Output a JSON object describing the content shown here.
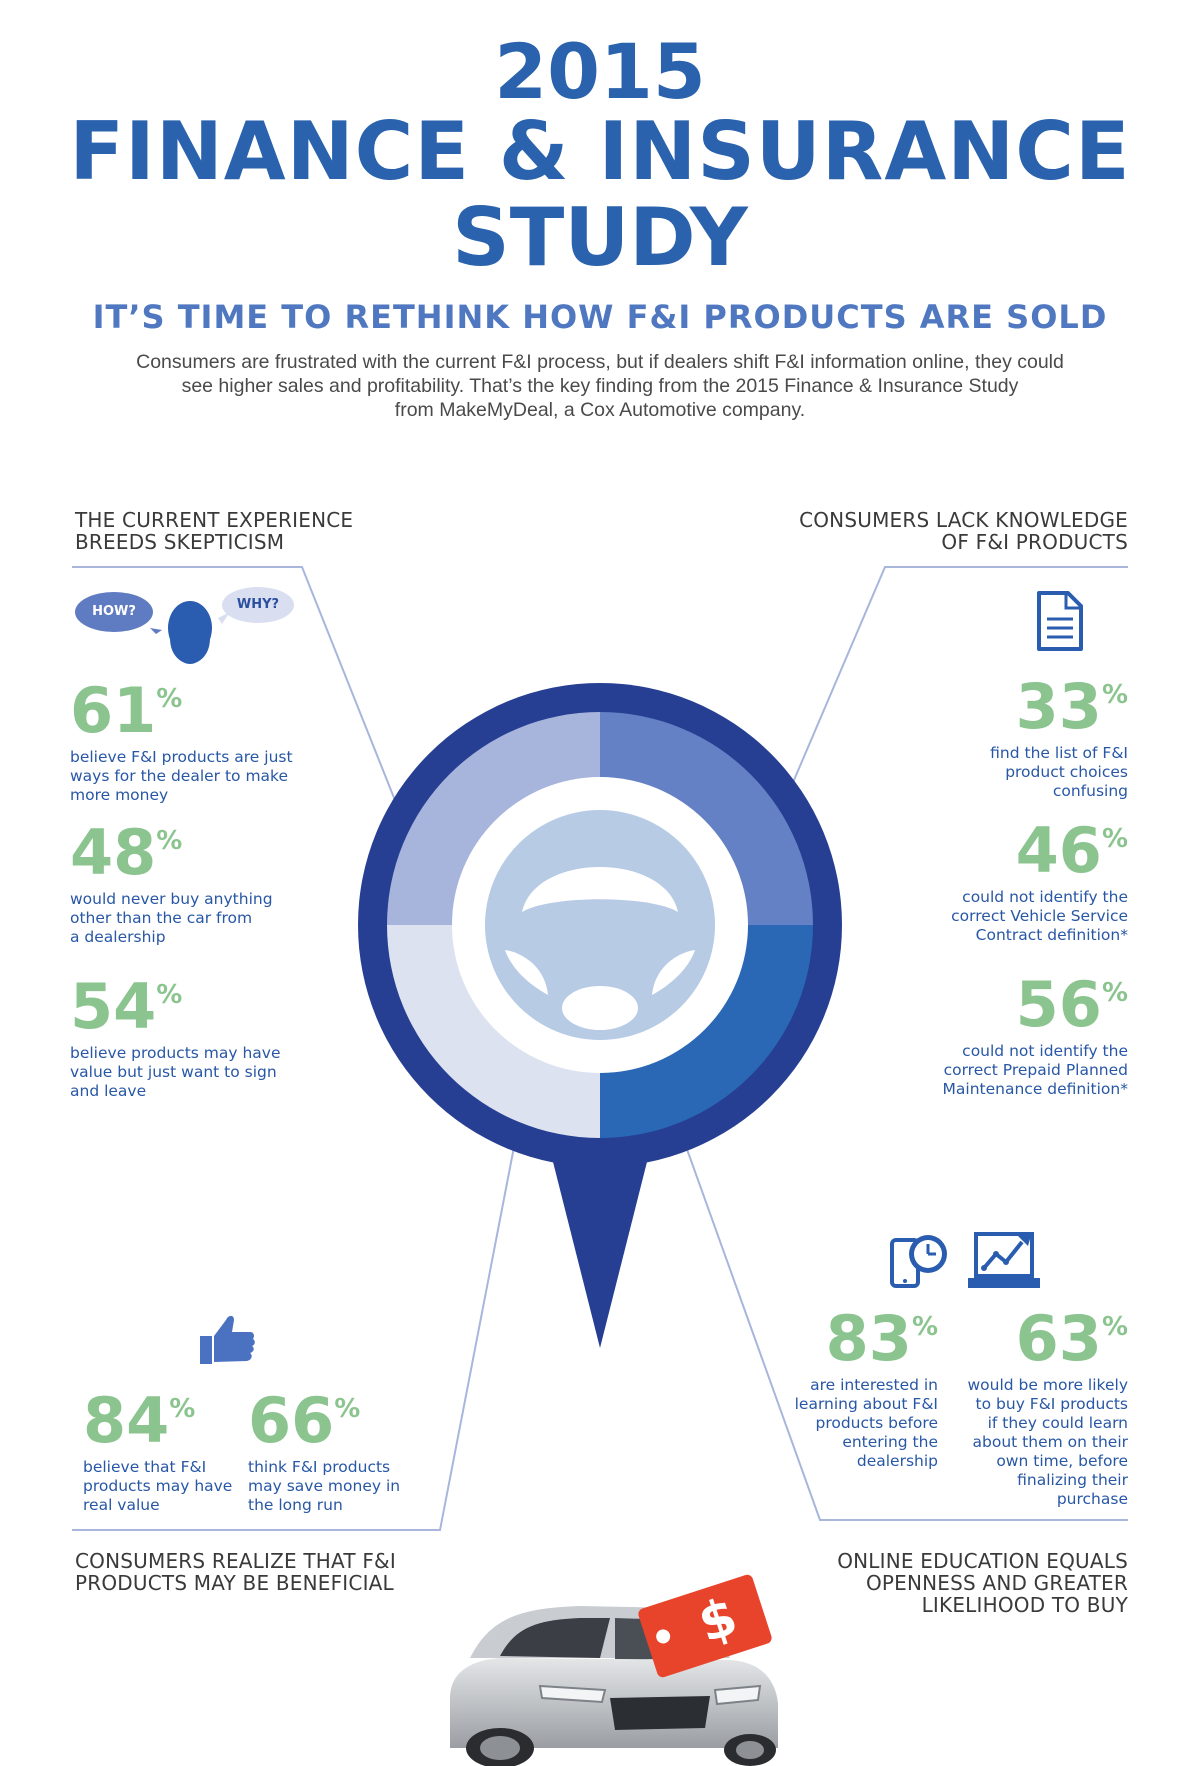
{
  "header": {
    "line1": "2015",
    "line2": "FINANCE & INSURANCE",
    "line3": "STUDY",
    "subtitle": "IT’S TIME TO RETHINK HOW F&I PRODUCTS ARE SOLD",
    "intro": [
      "Consumers are frustrated with the current F&I process, but if dealers shift F&I information online, they could",
      "see higher sales and profitability. That’s the key finding from the 2015 Finance & Insurance Study",
      "from MakeMyDeal, a Cox Automotive company."
    ]
  },
  "sections": {
    "top_left": [
      "THE CURRENT EXPERIENCE",
      "BREEDS SKEPTICISM"
    ],
    "top_right": [
      "CONSUMERS LACK KNOWLEDGE",
      "OF F&I PRODUCTS"
    ],
    "bottom_left": [
      "CONSUMERS REALIZE THAT F&I",
      "PRODUCTS MAY BE BENEFICIAL"
    ],
    "bottom_right": [
      "ONLINE EDUCATION EQUALS",
      "OPENNESS AND GREATER",
      "LIKELIHOOD TO BUY"
    ]
  },
  "bubbles": {
    "how": "HOW?",
    "why": "WHY?"
  },
  "price_tag": "$",
  "percent_sign": "%",
  "stats": {
    "s61": {
      "value": "61",
      "lines": [
        "believe F&I products are just",
        "ways for the dealer to make",
        "more money"
      ]
    },
    "s48": {
      "value": "48",
      "lines": [
        "would never buy anything",
        "other than the car from",
        "a dealership"
      ]
    },
    "s54": {
      "value": "54",
      "lines": [
        "believe products may have",
        "value but just want to sign",
        "and leave"
      ]
    },
    "s33": {
      "value": "33",
      "lines": [
        "find the list of F&I",
        "product choices",
        "confusing"
      ]
    },
    "s46": {
      "value": "46",
      "lines": [
        "could not identify the",
        "correct Vehicle Service",
        "Contract definition*"
      ]
    },
    "s56": {
      "value": "56",
      "lines": [
        "could not identify the",
        "correct Prepaid Planned",
        "Maintenance definition*"
      ]
    },
    "s84": {
      "value": "84",
      "lines": [
        "believe that F&I",
        "products may have",
        "real value"
      ]
    },
    "s66": {
      "value": "66",
      "lines": [
        "think  F&I products",
        "may save money in",
        "the long run"
      ]
    },
    "s83": {
      "value": "83",
      "lines": [
        "are interested in",
        "learning about F&I",
        "products before",
        "entering the",
        "dealership"
      ]
    },
    "s63": {
      "value": "63",
      "lines": [
        "would be more likely",
        "to buy F&I products",
        "if they could learn",
        "about them on their",
        "own time, before",
        "finalizing their",
        "purchase"
      ]
    }
  },
  "colors": {
    "title_blue": "#2a62ad",
    "subtitle_blue": "#4f78c1",
    "stat_green": "#8bc48f",
    "text_blue": "#2857a6",
    "ring_navy": "#263f93",
    "tag_red": "#e8432b"
  },
  "icons": [
    "speech-bubble-icon",
    "person-head-icon",
    "document-icon",
    "steering-wheel-icon",
    "thumbs-up-icon",
    "phone-clock-icon",
    "laptop-chart-icon",
    "car-icon",
    "price-tag-icon"
  ]
}
